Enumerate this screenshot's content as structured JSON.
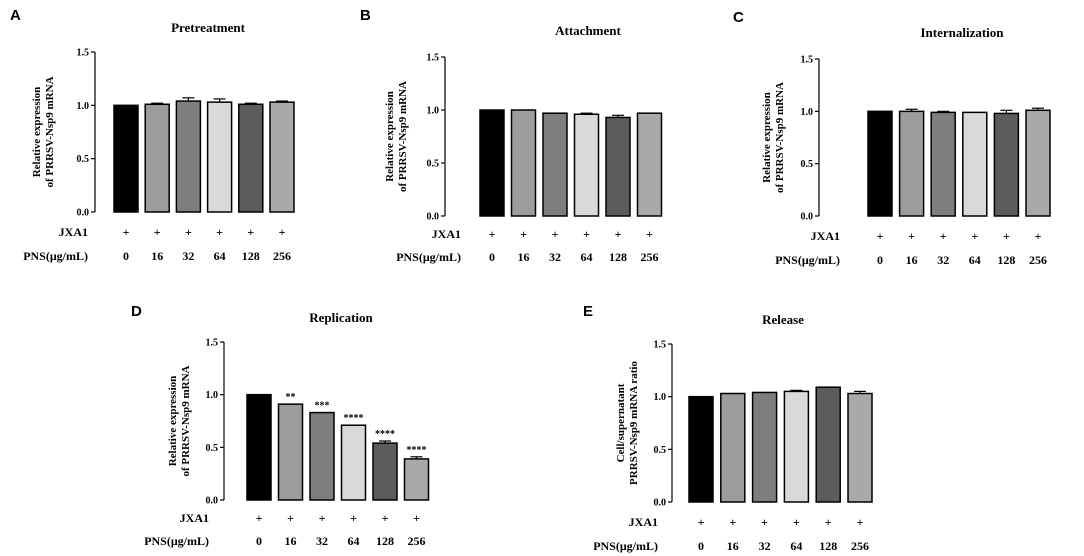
{
  "chart_data": [
    {
      "type": "bar",
      "panel": "A",
      "title": "Pretreatment",
      "ylabel": [
        "Relative expression",
        "of PRRSV-Nsp9 mRNA"
      ],
      "ylim": [
        0,
        1.5
      ],
      "yticks": [
        "0.0",
        "0.5",
        "1.0",
        "1.5"
      ],
      "categories": [
        "0",
        "16",
        "32",
        "64",
        "128",
        "256"
      ],
      "values": [
        1.0,
        1.01,
        1.04,
        1.03,
        1.01,
        1.03
      ],
      "errors": [
        0.0,
        0.01,
        0.03,
        0.03,
        0.01,
        0.01
      ],
      "colors": [
        "#000000",
        "#9c9c9c",
        "#7e7e7e",
        "#d9d9d9",
        "#5c5c5c",
        "#a9a9a9"
      ],
      "significance": [
        "",
        "",
        "",
        "",
        "",
        ""
      ],
      "xrows": [
        {
          "label": "JXA1",
          "values": [
            "+",
            "+",
            "+",
            "+",
            "+",
            "+"
          ]
        },
        {
          "label": "PNS(μg/mL)",
          "values": [
            "0",
            "16",
            "32",
            "64",
            "128",
            "256"
          ]
        }
      ]
    },
    {
      "type": "bar",
      "panel": "B",
      "title": "Attachment",
      "ylabel": [
        "Relative expression",
        "of PRRSV-Nsp9 mRNA"
      ],
      "ylim": [
        0,
        1.5
      ],
      "yticks": [
        "0.0",
        "0.5",
        "1.0",
        "1.5"
      ],
      "categories": [
        "0",
        "16",
        "32",
        "64",
        "128",
        "256"
      ],
      "values": [
        1.0,
        1.0,
        0.97,
        0.96,
        0.93,
        0.97
      ],
      "errors": [
        0.0,
        0.0,
        0.0,
        0.01,
        0.02,
        0.0
      ],
      "colors": [
        "#000000",
        "#9c9c9c",
        "#7e7e7e",
        "#d9d9d9",
        "#5c5c5c",
        "#a9a9a9"
      ],
      "significance": [
        "",
        "",
        "",
        "",
        "",
        ""
      ],
      "xrows": [
        {
          "label": "JXA1",
          "values": [
            "+",
            "+",
            "+",
            "+",
            "+",
            "+"
          ]
        },
        {
          "label": "PNS(μg/mL)",
          "values": [
            "0",
            "16",
            "32",
            "64",
            "128",
            "256"
          ]
        }
      ]
    },
    {
      "type": "bar",
      "panel": "C",
      "title": "Internalization",
      "ylabel": [
        "Relative expression",
        "of PRRSV-Nsp9 mRNA"
      ],
      "ylim": [
        0,
        1.5
      ],
      "yticks": [
        "0.0",
        "0.5",
        "1.0",
        "1.5"
      ],
      "categories": [
        "0",
        "16",
        "32",
        "64",
        "128",
        "256"
      ],
      "values": [
        1.0,
        1.0,
        0.99,
        0.99,
        0.98,
        1.01
      ],
      "errors": [
        0.0,
        0.02,
        0.01,
        0.0,
        0.03,
        0.02
      ],
      "colors": [
        "#000000",
        "#9c9c9c",
        "#7e7e7e",
        "#d9d9d9",
        "#5c5c5c",
        "#a9a9a9"
      ],
      "significance": [
        "",
        "",
        "",
        "",
        "",
        ""
      ],
      "xrows": [
        {
          "label": "JXA1",
          "values": [
            "+",
            "+",
            "+",
            "+",
            "+",
            "+"
          ]
        },
        {
          "label": "PNS(μg/mL)",
          "values": [
            "0",
            "16",
            "32",
            "64",
            "128",
            "256"
          ]
        }
      ]
    },
    {
      "type": "bar",
      "panel": "D",
      "title": "Replication",
      "ylabel": [
        "Relative expression",
        "of PRRSV-Nsp9 mRNA"
      ],
      "ylim": [
        0,
        1.5
      ],
      "yticks": [
        "0.0",
        "0.5",
        "1.0",
        "1.5"
      ],
      "categories": [
        "0",
        "16",
        "32",
        "64",
        "128",
        "256"
      ],
      "values": [
        1.0,
        0.91,
        0.83,
        0.71,
        0.54,
        0.39
      ],
      "errors": [
        0.0,
        0.0,
        0.0,
        0.0,
        0.02,
        0.02
      ],
      "colors": [
        "#000000",
        "#9c9c9c",
        "#7e7e7e",
        "#d9d9d9",
        "#5c5c5c",
        "#a9a9a9"
      ],
      "significance": [
        "",
        "**",
        "***",
        "****",
        "****",
        "****"
      ],
      "xrows": [
        {
          "label": "JXA1",
          "values": [
            "+",
            "+",
            "+",
            "+",
            "+",
            "+"
          ]
        },
        {
          "label": "PNS(μg/mL)",
          "values": [
            "0",
            "16",
            "32",
            "64",
            "128",
            "256"
          ]
        }
      ]
    },
    {
      "type": "bar",
      "panel": "E",
      "title": "Release",
      "ylabel": [
        "Cell/supernatant",
        "PRRSV-Nsp9 mRNA ratio"
      ],
      "ylim": [
        0,
        1.5
      ],
      "yticks": [
        "0.0",
        "0.5",
        "1.0",
        "1.5"
      ],
      "categories": [
        "0",
        "16",
        "32",
        "64",
        "128",
        "256"
      ],
      "values": [
        1.0,
        1.03,
        1.04,
        1.05,
        1.09,
        1.03
      ],
      "errors": [
        0.0,
        0.0,
        0.0,
        0.01,
        0.0,
        0.02
      ],
      "colors": [
        "#000000",
        "#9c9c9c",
        "#7e7e7e",
        "#d9d9d9",
        "#5c5c5c",
        "#a9a9a9"
      ],
      "significance": [
        "",
        "",
        "",
        "",
        "",
        ""
      ],
      "xrows": [
        {
          "label": "JXA1",
          "values": [
            "+",
            "+",
            "+",
            "+",
            "+",
            "+"
          ]
        },
        {
          "label": "PNS(μg/mL)",
          "values": [
            "0",
            "16",
            "32",
            "64",
            "128",
            "256"
          ]
        }
      ]
    }
  ]
}
